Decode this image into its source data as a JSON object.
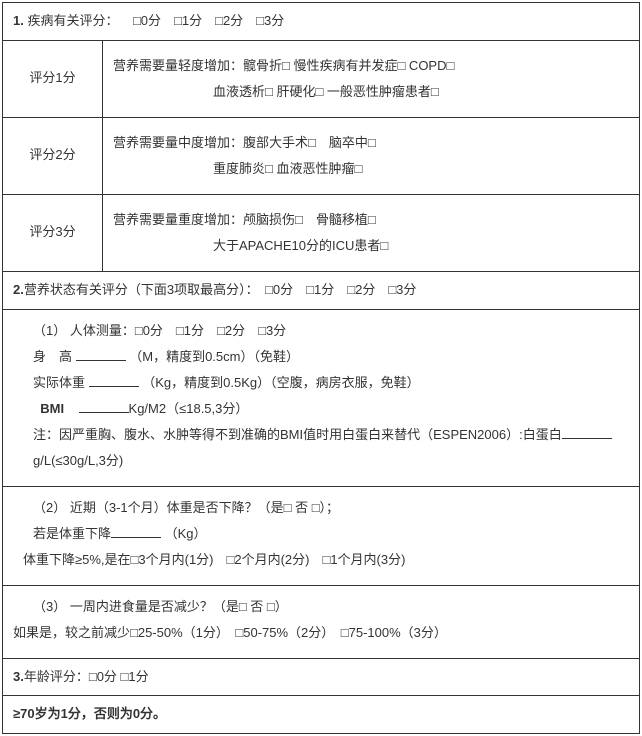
{
  "section1": {
    "title_prefix": "1.",
    "title": "疾病有关评分：",
    "options": "□0分　□1分　□2分　□3分",
    "rows": [
      {
        "label": "评分1分",
        "line1": "营养需要量轻度增加：髋骨折□ 慢性疾病有并发症□ COPD□",
        "line2": "血液透析□ 肝硬化□ 一般恶性肿瘤患者□"
      },
      {
        "label": "评分2分",
        "line1": "营养需要量中度增加：腹部大手术□　脑卒中□",
        "line2": "重度肺炎□ 血液恶性肿瘤□"
      },
      {
        "label": "评分3分",
        "line1": "营养需要量重度增加：颅脑损伤□　骨髓移植□",
        "line2": "大于APACHE10分的ICU患者□"
      }
    ]
  },
  "section2": {
    "title_prefix": "2.",
    "title": "营养状态有关评分（下面3项取最高分）：　□0分　□1分　□2分　□3分",
    "part1": {
      "l1": "（1） 人体测量：□0分　□1分　□2分　□3分",
      "l2a": "身　高 ",
      "l2b": "（M，精度到0.5cm）（免鞋）",
      "l3a": "实际体重 ",
      "l3b": "（Kg，精度到0.5Kg）（空腹，病房衣服，免鞋）",
      "l4a": "BMI",
      "l4b": "Kg/M2（≤18.5,3分）",
      "l5a": "注：因严重胸、腹水、水肿等得不到准确的BMI值时用白蛋白来替代（ESPEN2006）:白蛋白",
      "l5b": "g/L(≤30g/L,3分)"
    },
    "part2": {
      "l1": "（2） 近期（3-1个月）体重是否下降？（是□ 否 □）；",
      "l2a": "若是体重下降",
      "l2b": "（Kg）",
      "l3": "体重下降≥5%,是在□3个月内(1分)　□2个月内(2分)　□1个月内(3分)"
    },
    "part3": {
      "l1": "（3） 一周内进食量是否减少？（是□ 否 □）",
      "l2": "如果是，较之前减少□25-50%（1分）　□50-75%（2分）　□75-100%（3分）"
    }
  },
  "section3": {
    "title_prefix": "3.",
    "title": "年龄评分：□0分 □1分",
    "rule": "≥70岁为1分，否则为0分。"
  }
}
